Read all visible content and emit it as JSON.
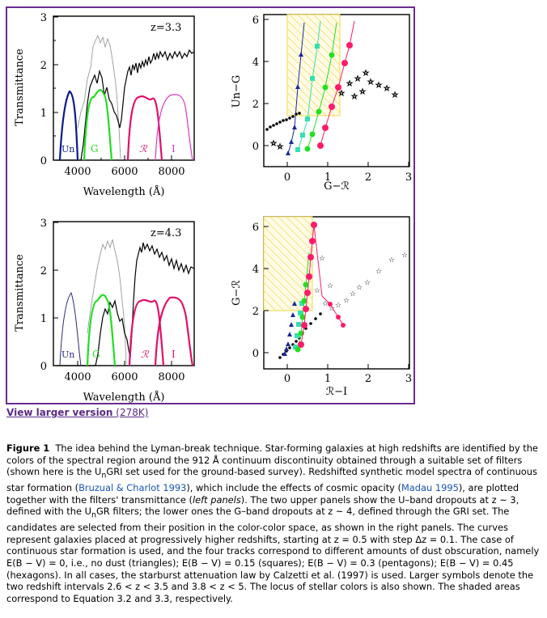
{
  "figure": {
    "panels": [
      {
        "id": "top-left",
        "ylabel": "Transmittance",
        "xlabel": "Wavelength (Å)",
        "annotation": "z=3.3",
        "x_ticks": [
          "4000",
          "6000",
          "8000"
        ],
        "y_ticks": [
          "0",
          "1",
          "2",
          "3"
        ],
        "filters": [
          {
            "label": "Un",
            "color": "#0a1a8a"
          },
          {
            "label": "G",
            "color": "#22dd22"
          },
          {
            "label": "ℛ",
            "color": "#e0106a"
          },
          {
            "label": "I",
            "color": "#d838c8"
          }
        ]
      },
      {
        "id": "top-right",
        "ylabel": "Un−G",
        "xlabel": "G−ℛ",
        "x_ticks": [
          "0",
          "1",
          "2",
          "3"
        ],
        "y_ticks": [
          "0",
          "2",
          "4",
          "6"
        ]
      },
      {
        "id": "bottom-left",
        "ylabel": "Transmittance",
        "xlabel": "Wavelength (Å)",
        "annotation": "z=4.3",
        "x_ticks": [
          "4000",
          "6000",
          "8000"
        ],
        "y_ticks": [
          "0",
          "1",
          "2",
          "3"
        ],
        "filters": [
          {
            "label": "Un",
            "color": "#2a2a7a"
          },
          {
            "label": "G",
            "color": "#22dd22"
          },
          {
            "label": "ℛ",
            "color": "#e0106a"
          },
          {
            "label": "I",
            "color": "#e0106a"
          }
        ]
      },
      {
        "id": "bottom-right",
        "ylabel": "G−ℛ",
        "xlabel": "ℛ−I",
        "x_ticks": [
          "0",
          "1",
          "2",
          "3"
        ],
        "y_ticks": [
          "0",
          "2",
          "4",
          "6"
        ]
      }
    ],
    "colors": {
      "frame": "#6a2b93",
      "shade": "#f2dd55",
      "triangles": "#1a2a9a",
      "squares": "#33e0b0",
      "pentagons": "#22e022",
      "hexagons": "#ff1a6a"
    }
  },
  "link": {
    "text": "View larger version",
    "size": "(278K)"
  },
  "caption": {
    "label": "Figure 1",
    "text1": "The idea behind the Lyman-break technique. Star-forming galaxies at high redshifts are identified by the colors of the spectral region around the 912 Å continuum discontinuity obtained through a suitable set of filters (shown here is the U",
    "text1b": "n",
    "text1c": "GRI set used for the ground-based survey). Redshifted synthetic model spectra of continuous star formation (",
    "cite1": "Bruzual & Charlot 1993",
    "text2": "), which include the effects of cosmic opacity (",
    "cite2": "Madau 1995",
    "text3": "), are plotted together with the filters' transmittance (",
    "text3i": "left panels",
    "text4": "). The two upper panels show the U–band dropouts at z ~ 3, defined with the U",
    "text4b": "n",
    "text4c": "GR filters; the lower ones the G–band dropouts at z ~ 4, defined through the GRI set. The candidates are selected from their position in the color-color space, as shown in the right panels. The curves represent galaxies placed at progressively higher redshifts, starting at z = 0.5 with step Δz = 0.1. The case of continuous star formation is used, and the four tracks correspond to different amounts of dust obscuration, namely E(B − V) = 0, i.e., no dust (triangles); E(B − V) = 0.15 (squares); E(B − V) = 0.3 (pentagons); E(B − V) = 0.45 (hexagons). In all cases, the starburst attenuation law by Calzetti et al. (1997) is used. Larger symbols denote the two redshift intervals 2.6 < z < 3.5 and 3.8 < z < 5. The locus of stellar colors is also shown. The shaded areas correspond to Equation 3.2 and 3.3, respectively."
  }
}
